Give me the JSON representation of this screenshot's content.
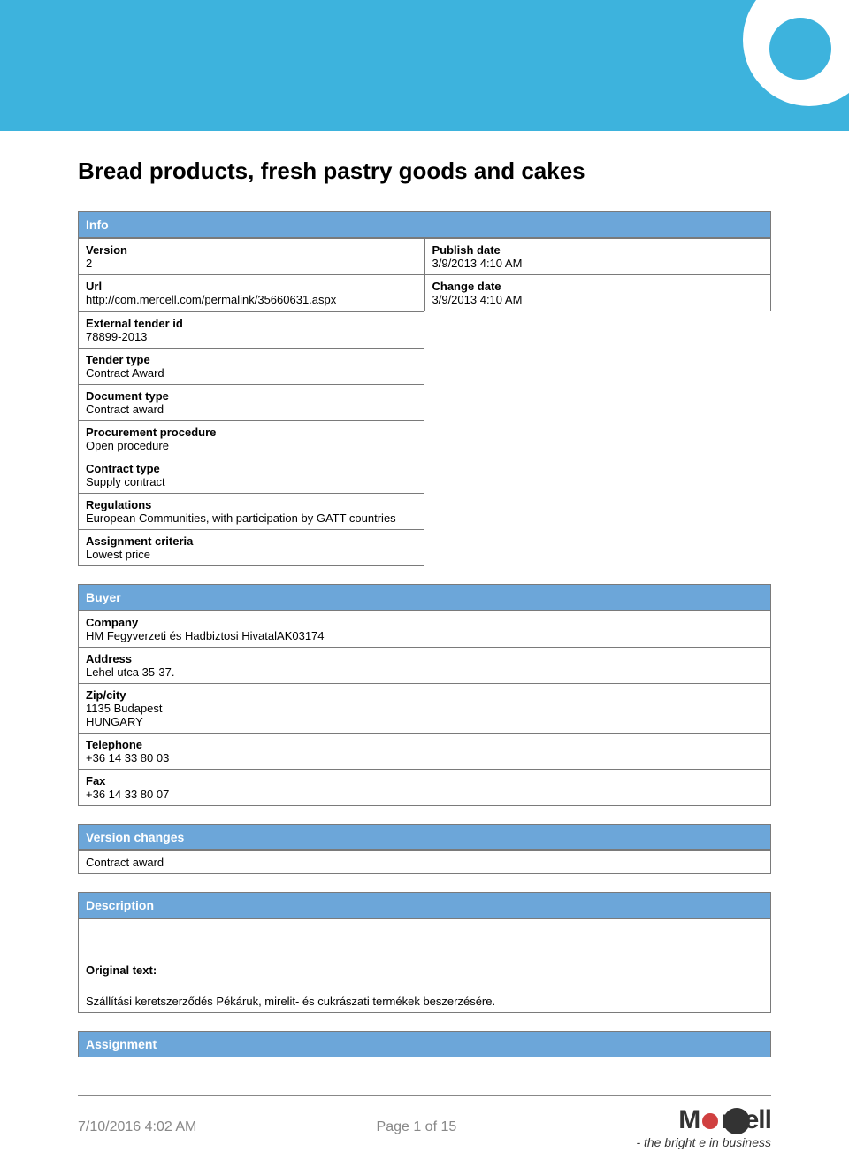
{
  "title": "Bread products, fresh pastry goods and cakes",
  "sections": {
    "info": {
      "header": "Info",
      "version_label": "Version",
      "version_value": "2",
      "publish_date_label": "Publish date",
      "publish_date_value": "3/9/2013 4:10 AM",
      "url_label": "Url",
      "url_value": "http://com.mercell.com/permalink/35660631.aspx",
      "change_date_label": "Change date",
      "change_date_value": "3/9/2013 4:10 AM",
      "external_tender_id_label": "External tender id",
      "external_tender_id_value": "78899-2013",
      "tender_type_label": "Tender type",
      "tender_type_value": "Contract Award",
      "document_type_label": "Document type",
      "document_type_value": "Contract award",
      "procurement_procedure_label": "Procurement procedure",
      "procurement_procedure_value": "Open procedure",
      "contract_type_label": "Contract type",
      "contract_type_value": "Supply contract",
      "regulations_label": "Regulations",
      "regulations_value": "European Communities, with participation by GATT countries",
      "assignment_criteria_label": "Assignment criteria",
      "assignment_criteria_value": "Lowest price"
    },
    "buyer": {
      "header": "Buyer",
      "company_label": "Company",
      "company_value": "HM Fegyverzeti és Hadbiztosi HivatalAK03174",
      "address_label": "Address",
      "address_value": "Lehel utca 35-37.",
      "zipcity_label": "Zip/city",
      "zipcity_value1": "1135 Budapest",
      "zipcity_value2": "HUNGARY",
      "telephone_label": "Telephone",
      "telephone_value": "+36 14 33 80 03",
      "fax_label": "Fax",
      "fax_value": "+36 14 33 80 07"
    },
    "version_changes": {
      "header": "Version changes",
      "value": "Contract award"
    },
    "description": {
      "header": "Description",
      "original_text_label": "Original text:",
      "original_text_value": "Szállítási keretszerződés Pékáruk, mirelit- és cukrászati termékek beszerzésére."
    },
    "assignment": {
      "header": "Assignment"
    }
  },
  "footer": {
    "timestamp": "7/10/2016 4:02 AM",
    "page": "Page 1 of 15",
    "logo_m": "M",
    "logo_rcell": "rcell",
    "tagline": "- the bright e in business"
  },
  "colors": {
    "header_blue": "#3db3dd",
    "section_blue": "#6ca6d9",
    "border_gray": "#7a7a7a",
    "footer_gray": "#888888",
    "logo_red": "#d04040"
  }
}
